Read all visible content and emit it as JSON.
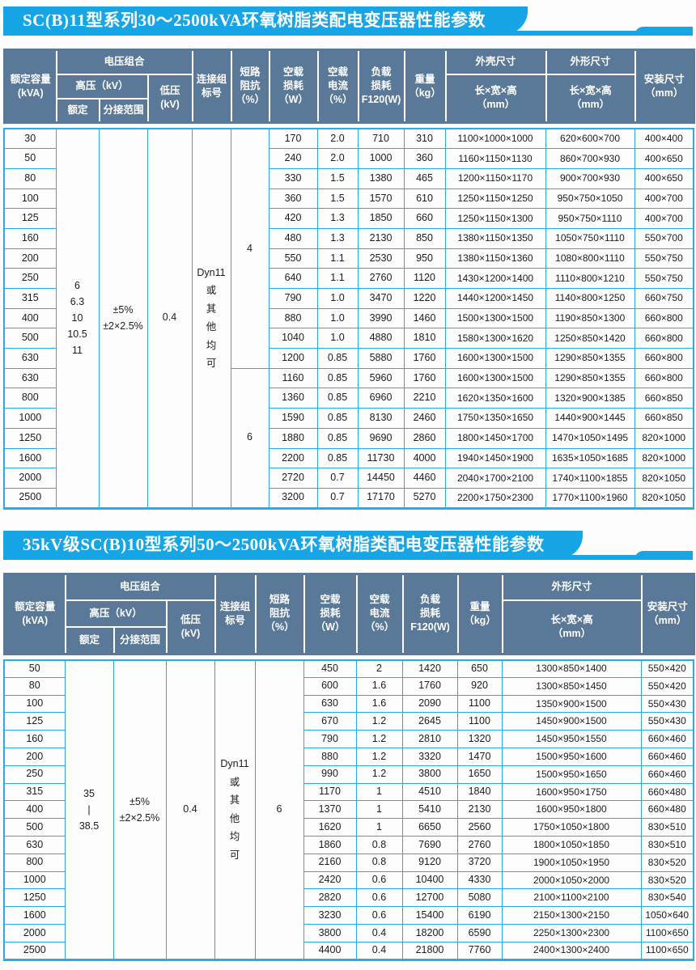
{
  "colors": {
    "title_bar_bg": "#16a6e6",
    "title_text": "#ffffff",
    "header_bg": "#5a7998",
    "header_text": "#ffffff",
    "header_gridline": "#ffffff",
    "body_gridline": "#2aabe2",
    "body_text": "#1c1c1c",
    "page_bg": "#fdfdfd"
  },
  "tables": [
    {
      "title": "SC(B)11型系列30～2500kVA环氧树脂类配电变压器性能参数",
      "header": {
        "capacity": "额定容量\n(kVA)",
        "voltage_group": "电压组合",
        "hv": "高压（kV）",
        "hv_rated": "额定",
        "tap_range": "分接范围",
        "lv": "低压\n(kV)",
        "vector_group": "连接组\n标号",
        "impedance": "短路\n阻抗\n（%）",
        "no_load_loss": "空载\n损耗\n（W）",
        "no_load_current": "空载\n电流\n（%）",
        "load_loss": "负载\n损耗\nF120(W)",
        "weight": "重量\n（kg）",
        "shell_size": "外壳尺寸",
        "shape_size": "外形尺寸",
        "lwh": "长×宽×高\n（mm）",
        "install_size": "安装尺寸\n（mm）"
      },
      "merged": {
        "hv_rated": "6\n6.3\n10\n10.5\n11",
        "tap_range": "±5%\n±2×2.5%",
        "lv": "0.4",
        "vector_group": "Dyn11\n或\n其\n他\n均\n可",
        "impedance_groups": [
          {
            "value": "4",
            "span": 12
          },
          {
            "value": "6",
            "span": 7
          }
        ]
      },
      "rows": [
        [
          "30",
          "170",
          "2.0",
          "710",
          "310",
          "1100×1000×1000",
          "620×600×700",
          "400×400"
        ],
        [
          "50",
          "240",
          "2.0",
          "1000",
          "360",
          "1160×1150×1130",
          "860×700×930",
          "400×650"
        ],
        [
          "80",
          "330",
          "1.5",
          "1380",
          "465",
          "1200×1150×1170",
          "900×700×930",
          "400×650"
        ],
        [
          "100",
          "360",
          "1.5",
          "1570",
          "610",
          "1250×1150×1250",
          "950×750×1050",
          "400×700"
        ],
        [
          "125",
          "420",
          "1.3",
          "1850",
          "660",
          "1250×1150×1300",
          "950×750×1110",
          "400×700"
        ],
        [
          "160",
          "480",
          "1.3",
          "2130",
          "850",
          "1380×1150×1350",
          "1050×750×1110",
          "550×700"
        ],
        [
          "200",
          "550",
          "1.1",
          "2530",
          "950",
          "1380×1150×1360",
          "1080×800×1110",
          "550×750"
        ],
        [
          "250",
          "640",
          "1.1",
          "2760",
          "1120",
          "1430×1200×1400",
          "1110×800×1210",
          "550×750"
        ],
        [
          "315",
          "790",
          "1.0",
          "3470",
          "1220",
          "1440×1200×1450",
          "1140×800×1250",
          "660×750"
        ],
        [
          "400",
          "880",
          "1.0",
          "3990",
          "1460",
          "1500×1300×1500",
          "1190×850×1300",
          "660×800"
        ],
        [
          "500",
          "1040",
          "1.0",
          "4880",
          "1810",
          "1580×1300×1620",
          "1250×850×1420",
          "660×800"
        ],
        [
          "630",
          "1200",
          "0.85",
          "5880",
          "1760",
          "1600×1300×1500",
          "1290×850×1355",
          "660×800"
        ],
        [
          "630",
          "1160",
          "0.85",
          "5960",
          "1760",
          "1600×1300×1500",
          "1290×850×1355",
          "660×800"
        ],
        [
          "800",
          "1360",
          "0.85",
          "6960",
          "2210",
          "1620×1350×1600",
          "1320×900×1385",
          "660×850"
        ],
        [
          "1000",
          "1590",
          "0.85",
          "8130",
          "2460",
          "1750×1350×1650",
          "1440×900×1445",
          "660×850"
        ],
        [
          "1250",
          "1880",
          "0.85",
          "9690",
          "2860",
          "1800×1450×1700",
          "1470×1050×1495",
          "820×1000"
        ],
        [
          "1600",
          "2200",
          "0.85",
          "11730",
          "4000",
          "1940×1450×1900",
          "1635×1050×1685",
          "820×1000"
        ],
        [
          "2000",
          "2720",
          "0.7",
          "14450",
          "4460",
          "2040×1700×2100",
          "1740×1100×1855",
          "820×1050"
        ],
        [
          "2500",
          "3200",
          "0.7",
          "17170",
          "5270",
          "2200×1750×2300",
          "1770×1100×1960",
          "820×1050"
        ]
      ]
    },
    {
      "title": "35kV级SC(B)10型系列50～2500kVA环氧树脂类配电变压器性能参数",
      "header": {
        "capacity": "额定容量\n(kVA)",
        "voltage_group": "电压组合",
        "hv": "高压（kV）",
        "hv_rated": "额定",
        "tap_range": "分接范围",
        "lv": "低压\n(kV)",
        "vector_group": "连接组\n标号",
        "impedance": "短路\n阻抗\n（%）",
        "no_load_loss": "空载\n损耗\n（W）",
        "no_load_current": "空载\n电流\n（%）",
        "load_loss": "负载\n损耗\nF120(W)",
        "weight": "重量\n（kg）",
        "shape_size": "外形尺寸",
        "lwh": "长×宽×高\n（mm）",
        "install_size": "安装尺寸\n（mm）"
      },
      "merged": {
        "hv_rated": "35\n|\n38.5",
        "tap_range": "±5%\n±2×2.5%",
        "lv": "0.4",
        "vector_group": "Dyn11\n或\n其\n他\n均\n可",
        "impedance_groups": [
          {
            "value": "6",
            "span": 17
          }
        ]
      },
      "rows": [
        [
          "50",
          "450",
          "2",
          "1420",
          "650",
          "1300×850×1400",
          "550×420"
        ],
        [
          "80",
          "600",
          "1.6",
          "1760",
          "920",
          "1300×850×1450",
          "550×420"
        ],
        [
          "100",
          "630",
          "1.6",
          "2090",
          "1100",
          "1350×900×1500",
          "550×430"
        ],
        [
          "125",
          "670",
          "1.2",
          "2645",
          "1100",
          "1450×900×1500",
          "550×430"
        ],
        [
          "160",
          "790",
          "1.2",
          "2810",
          "1320",
          "1450×950×1550",
          "660×460"
        ],
        [
          "200",
          "880",
          "1.2",
          "3320",
          "1470",
          "1500×950×1600",
          "660×460"
        ],
        [
          "250",
          "990",
          "1.2",
          "3800",
          "1650",
          "1500×950×1650",
          "660×460"
        ],
        [
          "315",
          "1170",
          "1",
          "4510",
          "1840",
          "1600×950×1750",
          "660×480"
        ],
        [
          "400",
          "1370",
          "1",
          "5410",
          "2130",
          "1600×950×1800",
          "660×480"
        ],
        [
          "500",
          "1620",
          "1",
          "6650",
          "2560",
          "1750×1050×1800",
          "830×510"
        ],
        [
          "630",
          "1860",
          "0.8",
          "7690",
          "2760",
          "1800×1050×1850",
          "830×510"
        ],
        [
          "800",
          "2160",
          "0.8",
          "9120",
          "3720",
          "1900×1050×1950",
          "830×520"
        ],
        [
          "1000",
          "2420",
          "0.6",
          "10400",
          "4330",
          "2000×1050×2000",
          "830×520"
        ],
        [
          "1250",
          "2820",
          "0.6",
          "12700",
          "5080",
          "2100×1100×2100",
          "830×540"
        ],
        [
          "1600",
          "3230",
          "0.6",
          "15400",
          "6190",
          "2150×1300×2150",
          "1050×640"
        ],
        [
          "2000",
          "3800",
          "0.4",
          "18200",
          "6590",
          "2250×1300×2300",
          "1100×650"
        ],
        [
          "2500",
          "4400",
          "0.4",
          "21800",
          "7760",
          "2400×1300×2400",
          "1100×650"
        ]
      ]
    }
  ]
}
